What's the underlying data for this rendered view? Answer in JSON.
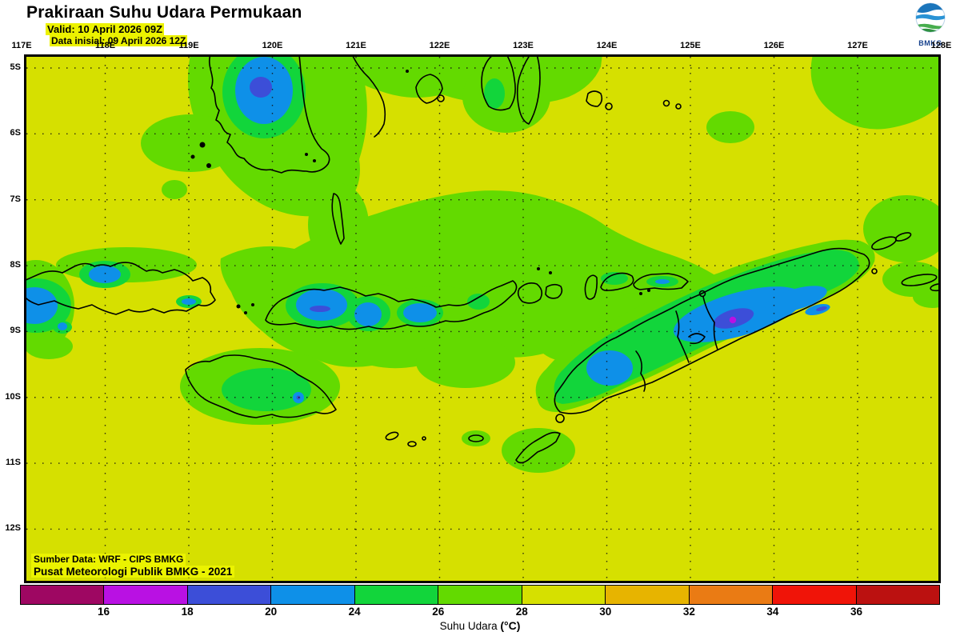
{
  "header": {
    "title": "Prakiraan Suhu Udara Permukaan",
    "valid": "Valid: 10 April 2026 09Z",
    "init": "Data inisial: 09 April 2026 12Z",
    "logo_text": "BMKG"
  },
  "map": {
    "lon_labels": [
      "117E",
      "118E",
      "119E",
      "120E",
      "121E",
      "122E",
      "123E",
      "124E",
      "125E",
      "126E",
      "127E",
      "128E"
    ],
    "lat_labels": [
      "5S",
      "6S",
      "7S",
      "8S",
      "9S",
      "10S",
      "11S",
      "12S"
    ],
    "credits_line1": "Sumber Data: WRF - CIPS BMKG",
    "credits_line2": "Pusat Meteorologi Publik BMKG - 2021"
  },
  "palette": {
    "below16": "#9e0762",
    "t16_18": "#b911e3",
    "t18_20": "#3c4ed8",
    "t20_24": "#0e90e8",
    "t24_26": "#12d53b",
    "t26_28": "#63da00",
    "t28_30": "#d6e000",
    "t30_32": "#e7b400",
    "t32_34": "#ea7b14",
    "t34_36": "#f01408",
    "above36": "#bb1110"
  },
  "legend": {
    "segment_keys": [
      "below16",
      "t16_18",
      "t18_20",
      "t20_24",
      "t24_26",
      "t26_28",
      "t28_30",
      "t30_32",
      "t32_34",
      "t34_36",
      "above36"
    ],
    "tick_labels": [
      "16",
      "18",
      "20",
      "24",
      "26",
      "28",
      "30",
      "32",
      "34",
      "36"
    ],
    "caption_text": "Suhu Udara ",
    "caption_unit": "(°C)"
  },
  "chart_data": {
    "type": "heatmap",
    "title": "Prakiraan Suhu Udara Permukaan",
    "valid_time": "10 April 2026 09Z",
    "initial_time": "09 April 2026 12Z",
    "colorbar_label": "Suhu Udara (°C)",
    "scale_boundaries_degC": [
      16,
      18,
      20,
      24,
      26,
      28,
      30,
      32,
      34,
      36
    ],
    "scale_colors": [
      "#9e0762",
      "#b911e3",
      "#3c4ed8",
      "#0e90e8",
      "#12d53b",
      "#63da00",
      "#d6e000",
      "#e7b400",
      "#ea7b14",
      "#f01408",
      "#bb1110"
    ],
    "x_axis_ticks": [
      "117E",
      "118E",
      "119E",
      "120E",
      "121E",
      "122E",
      "123E",
      "124E",
      "125E",
      "126E",
      "127E",
      "128E"
    ],
    "y_axis_ticks": [
      "5S",
      "6S",
      "7S",
      "8S",
      "9S",
      "10S",
      "11S",
      "12S"
    ],
    "grid": "dotted",
    "dominant_field_value_degC": "28-30",
    "cool_anomaly_values_degC": "16-26 over mountains of South Sulawesi, Sumbawa, Flores, Sumba and Timor",
    "source": "WRF - CIPS BMKG"
  }
}
